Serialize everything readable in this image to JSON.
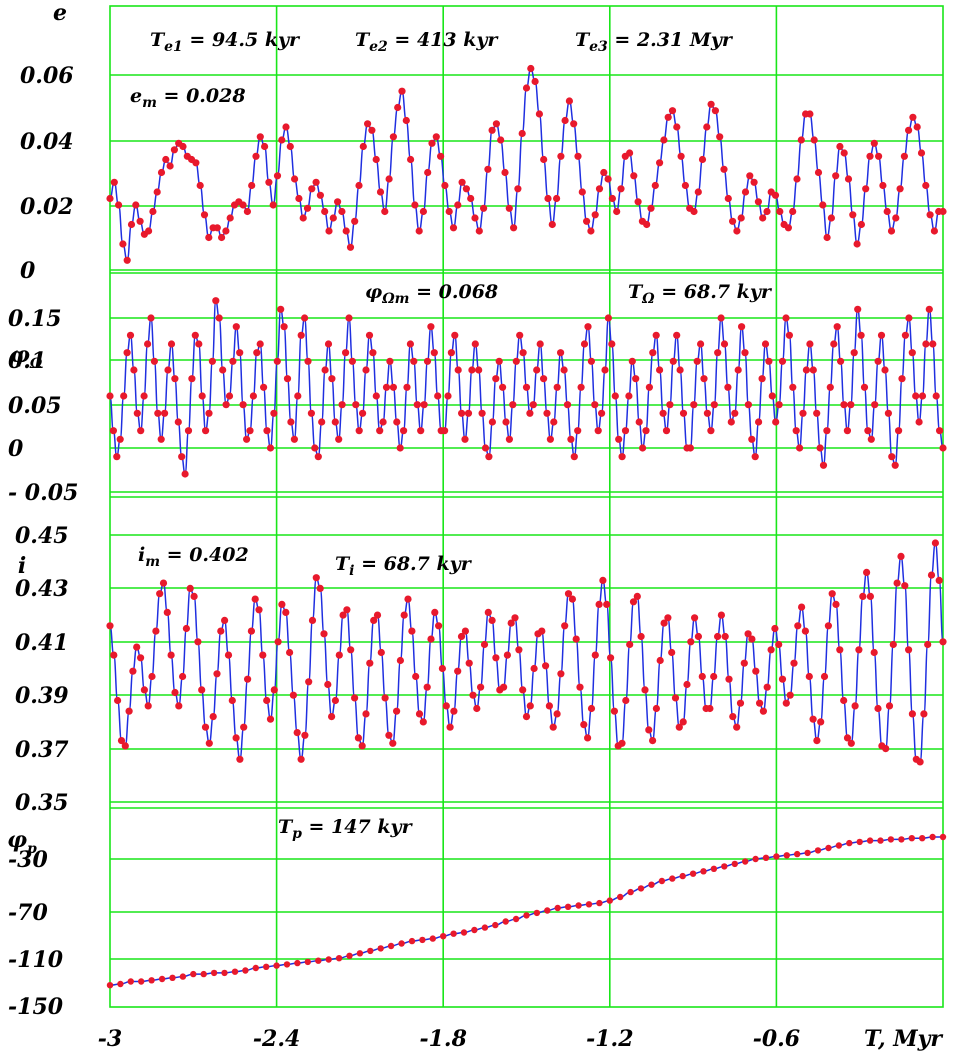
{
  "chart_data": [
    {
      "type": "line",
      "x_range": [
        -3.0,
        0.0
      ],
      "ylim": [
        0.0,
        0.07
      ],
      "ylabel": "e",
      "y_ticks": [
        "0",
        "0.02",
        "0.04",
        "0.06"
      ],
      "annotations": [
        {
          "main": "T",
          "sub": "e1",
          "rest": " = 94.5 kyr"
        },
        {
          "main": "T",
          "sub": "e2",
          "rest": " = 413  kyr"
        },
        {
          "main": "T",
          "sub": "e3",
          "rest": " = 2.31 Myr"
        },
        {
          "main": "e",
          "sub": "m",
          "rest": " = 0.028"
        }
      ],
      "series": [
        {
          "y": [
            0.022,
            0.027,
            0.02,
            0.008,
            0.003,
            0.014,
            0.02,
            0.015,
            0.011,
            0.012,
            0.018,
            0.024,
            0.03,
            0.034,
            0.032,
            0.037,
            0.039,
            0.038,
            0.035,
            0.034,
            0.033,
            0.026,
            0.017,
            0.01,
            0.013,
            0.013,
            0.01,
            0.012,
            0.016,
            0.02,
            0.021,
            0.02,
            0.018,
            0.026,
            0.035,
            0.041,
            0.038,
            0.027,
            0.02,
            0.029,
            0.04,
            0.044,
            0.038,
            0.028,
            0.022,
            0.016,
            0.019,
            0.025,
            0.027,
            0.023,
            0.018,
            0.012,
            0.016,
            0.021,
            0.018,
            0.012,
            0.007,
            0.015,
            0.026,
            0.038,
            0.045,
            0.043,
            0.034,
            0.024,
            0.018,
            0.028,
            0.041,
            0.05,
            0.055,
            0.046,
            0.034,
            0.02,
            0.012,
            0.018,
            0.03,
            0.039,
            0.041,
            0.035,
            0.026,
            0.018,
            0.013,
            0.02,
            0.027,
            0.025,
            0.022,
            0.016,
            0.012,
            0.019,
            0.031,
            0.043,
            0.045,
            0.04,
            0.03,
            0.019,
            0.013,
            0.025,
            0.042,
            0.056,
            0.062,
            0.058,
            0.048,
            0.034,
            0.022,
            0.014,
            0.022,
            0.035,
            0.046,
            0.052,
            0.045,
            0.035,
            0.024,
            0.015,
            0.012,
            0.017,
            0.025,
            0.03,
            0.028,
            0.022,
            0.018,
            0.025,
            0.035,
            0.036,
            0.029,
            0.021,
            0.015,
            0.014,
            0.019,
            0.026,
            0.033,
            0.04,
            0.047,
            0.049,
            0.044,
            0.035,
            0.026,
            0.019,
            0.018,
            0.024,
            0.034,
            0.044,
            0.051,
            0.049,
            0.041,
            0.031,
            0.022,
            0.015,
            0.012,
            0.016,
            0.024,
            0.029,
            0.027,
            0.021,
            0.016,
            0.018,
            0.024,
            0.023,
            0.018,
            0.014,
            0.013,
            0.018,
            0.028,
            0.04,
            0.048,
            0.048,
            0.04,
            0.03,
            0.02,
            0.01,
            0.016,
            0.029,
            0.038,
            0.036,
            0.028,
            0.017,
            0.008,
            0.014,
            0.025,
            0.035,
            0.039,
            0.035,
            0.026,
            0.018,
            0.012,
            0.016,
            0.025,
            0.035,
            0.043,
            0.047,
            0.044,
            0.036,
            0.026,
            0.017,
            0.012,
            0.018,
            0.018
          ]
        }
      ]
    },
    {
      "type": "line",
      "x_range": [
        -3.0,
        0.0
      ],
      "ylim": [
        -0.05,
        0.2
      ],
      "ylabel": "φΩ",
      "y_ticks": [
        "- 0.05",
        "0",
        "0.05",
        "0.1",
        "0.15"
      ],
      "annotations": [
        {
          "main": "φ",
          "sub": "Ωm",
          "rest": " = 0.068"
        },
        {
          "main": "T",
          "sub": "Ω",
          "rest": " =  68.7 kyr"
        }
      ],
      "series": [
        {
          "y": [
            0.06,
            0.02,
            -0.01,
            0.01,
            0.06,
            0.11,
            0.13,
            0.09,
            0.04,
            0.02,
            0.06,
            0.12,
            0.15,
            0.1,
            0.04,
            0.01,
            0.04,
            0.09,
            0.12,
            0.08,
            0.03,
            -0.01,
            -0.03,
            0.02,
            0.08,
            0.13,
            0.12,
            0.06,
            0.02,
            0.04,
            0.1,
            0.17,
            0.15,
            0.09,
            0.05,
            0.06,
            0.1,
            0.14,
            0.11,
            0.05,
            0.01,
            0.02,
            0.06,
            0.11,
            0.12,
            0.07,
            0.02,
            0.0,
            0.04,
            0.1,
            0.16,
            0.14,
            0.08,
            0.03,
            0.01,
            0.06,
            0.13,
            0.15,
            0.1,
            0.04,
            0.0,
            -0.01,
            0.03,
            0.09,
            0.12,
            0.08,
            0.03,
            0.01,
            0.05,
            0.11,
            0.15,
            0.1,
            0.05,
            0.02,
            0.04,
            0.09,
            0.13,
            0.11,
            0.06,
            0.02,
            0.03,
            0.07,
            0.1,
            0.07,
            0.03,
            0.0,
            0.02,
            0.07,
            0.12,
            0.1,
            0.05,
            0.02,
            0.05,
            0.1,
            0.14,
            0.11,
            0.06,
            0.02,
            0.02,
            0.06,
            0.11,
            0.13,
            0.09,
            0.04,
            0.01,
            0.04,
            0.09,
            0.12,
            0.09,
            0.04,
            0.0,
            -0.01,
            0.03,
            0.08,
            0.1,
            0.07,
            0.03,
            0.01,
            0.05,
            0.1,
            0.13,
            0.11,
            0.07,
            0.04,
            0.05,
            0.09,
            0.12,
            0.08,
            0.04,
            0.01,
            0.03,
            0.07,
            0.11,
            0.09,
            0.05,
            0.01,
            -0.01,
            0.02,
            0.07,
            0.12,
            0.14,
            0.1,
            0.05,
            0.02,
            0.04,
            0.09,
            0.15,
            0.12,
            0.06,
            0.01,
            -0.01,
            0.02,
            0.06,
            0.1,
            0.08,
            0.03,
            0.0,
            0.02,
            0.07,
            0.11,
            0.13,
            0.09,
            0.04,
            0.02,
            0.05,
            0.1,
            0.13,
            0.09,
            0.04,
            0.0,
            0.0,
            0.05,
            0.1,
            0.12,
            0.08,
            0.04,
            0.02,
            0.05,
            0.11,
            0.15,
            0.12,
            0.07,
            0.03,
            0.04,
            0.09,
            0.14,
            0.11,
            0.05,
            0.01,
            -0.01,
            0.03,
            0.08,
            0.12,
            0.1,
            0.06,
            0.03,
            0.05,
            0.1,
            0.15,
            0.13,
            0.07,
            0.02,
            0.0,
            0.04,
            0.09,
            0.12,
            0.09,
            0.04,
            0.0,
            -0.02,
            0.02,
            0.07,
            0.12,
            0.14,
            0.1,
            0.05,
            0.02,
            0.05,
            0.11,
            0.16,
            0.13,
            0.07,
            0.02,
            0.01,
            0.05,
            0.1,
            0.13,
            0.09,
            0.04,
            -0.01,
            -0.02,
            0.02,
            0.08,
            0.13,
            0.15,
            0.11,
            0.06,
            0.03,
            0.06,
            0.12,
            0.16,
            0.12,
            0.06,
            0.02,
            0.0
          ]
        }
      ]
    },
    {
      "type": "line",
      "x_range": [
        -3.0,
        0.0
      ],
      "ylim": [
        0.35,
        0.45
      ],
      "ylabel": "i",
      "y_ticks": [
        "0.35",
        "0.37",
        "0.39",
        "0.41",
        "0.43",
        "0.45"
      ],
      "annotations": [
        {
          "main": "i",
          "sub": "m",
          "rest": " = 0.402"
        },
        {
          "main": "T",
          "sub": "i",
          "rest": "  =  68.7 kyr"
        }
      ],
      "series": [
        {
          "y": [
            0.416,
            0.405,
            0.388,
            0.373,
            0.371,
            0.384,
            0.399,
            0.408,
            0.404,
            0.392,
            0.386,
            0.397,
            0.414,
            0.428,
            0.432,
            0.421,
            0.405,
            0.391,
            0.386,
            0.397,
            0.415,
            0.43,
            0.427,
            0.41,
            0.392,
            0.378,
            0.372,
            0.382,
            0.398,
            0.414,
            0.418,
            0.405,
            0.388,
            0.374,
            0.366,
            0.378,
            0.396,
            0.414,
            0.426,
            0.422,
            0.405,
            0.388,
            0.381,
            0.392,
            0.41,
            0.424,
            0.421,
            0.406,
            0.39,
            0.376,
            0.366,
            0.375,
            0.395,
            0.418,
            0.434,
            0.43,
            0.413,
            0.394,
            0.382,
            0.388,
            0.405,
            0.42,
            0.422,
            0.407,
            0.389,
            0.374,
            0.371,
            0.383,
            0.402,
            0.418,
            0.42,
            0.406,
            0.389,
            0.375,
            0.372,
            0.384,
            0.403,
            0.42,
            0.426,
            0.414,
            0.397,
            0.383,
            0.38,
            0.393,
            0.411,
            0.421,
            0.416,
            0.4,
            0.386,
            0.378,
            0.384,
            0.399,
            0.412,
            0.414,
            0.402,
            0.39,
            0.385,
            0.393,
            0.409,
            0.421,
            0.418,
            0.404,
            0.392,
            0.393,
            0.405,
            0.417,
            0.419,
            0.407,
            0.392,
            0.382,
            0.386,
            0.4,
            0.413,
            0.414,
            0.401,
            0.386,
            0.378,
            0.383,
            0.398,
            0.416,
            0.428,
            0.426,
            0.411,
            0.393,
            0.379,
            0.374,
            0.385,
            0.405,
            0.424,
            0.433,
            0.424,
            0.404,
            0.384,
            0.371,
            0.372,
            0.388,
            0.409,
            0.425,
            0.427,
            0.412,
            0.392,
            0.377,
            0.373,
            0.385,
            0.403,
            0.417,
            0.419,
            0.406,
            0.389,
            0.378,
            0.38,
            0.394,
            0.41,
            0.419,
            0.412,
            0.397,
            0.385,
            0.385,
            0.397,
            0.412,
            0.42,
            0.412,
            0.396,
            0.382,
            0.378,
            0.387,
            0.402,
            0.413,
            0.411,
            0.399,
            0.387,
            0.384,
            0.393,
            0.407,
            0.415,
            0.409,
            0.396,
            0.387,
            0.39,
            0.402,
            0.416,
            0.423,
            0.414,
            0.397,
            0.381,
            0.373,
            0.38,
            0.397,
            0.416,
            0.428,
            0.424,
            0.407,
            0.388,
            0.374,
            0.372,
            0.386,
            0.407,
            0.427,
            0.436,
            0.427,
            0.406,
            0.385,
            0.371,
            0.37,
            0.386,
            0.409,
            0.432,
            0.442,
            0.431,
            0.407,
            0.383,
            0.366,
            0.365,
            0.383,
            0.409,
            0.435,
            0.447,
            0.433,
            0.41
          ]
        }
      ]
    },
    {
      "type": "line",
      "x_range": [
        -3.0,
        0.0
      ],
      "ylim": [
        -150,
        -10
      ],
      "ylabel": "φp",
      "y_ticks": [
        "-150",
        "-110",
        "-70",
        "-30"
      ],
      "annotations": [
        {
          "main": "T",
          "sub": "p",
          "rest": " = 147 kyr"
        }
      ],
      "series": [
        {
          "y": [
            -133,
            -132,
            -130,
            -130,
            -129,
            -128,
            -127,
            -126,
            -124,
            -124,
            -123,
            -123,
            -122,
            -121,
            -119,
            -118,
            -117,
            -116,
            -115,
            -114,
            -113,
            -112,
            -111,
            -109,
            -107,
            -105,
            -103,
            -101,
            -99,
            -97,
            -96,
            -95,
            -93,
            -91,
            -90,
            -88,
            -86,
            -84,
            -81,
            -79,
            -76,
            -74,
            -72,
            -70,
            -69,
            -68,
            -67,
            -66,
            -64,
            -61,
            -57,
            -54,
            -51,
            -48,
            -46,
            -44,
            -42,
            -40,
            -38,
            -36,
            -34,
            -32,
            -30,
            -29,
            -28,
            -27,
            -26,
            -25,
            -23,
            -21,
            -19,
            -17,
            -16,
            -15,
            -15,
            -14,
            -14,
            -13,
            -13,
            -12,
            -12
          ]
        }
      ]
    }
  ],
  "x_axis": {
    "ticks": [
      {
        "v": -3.0,
        "label": "-3"
      },
      {
        "v": -2.4,
        "label": "-2.4"
      },
      {
        "v": -1.8,
        "label": "-1.8"
      },
      {
        "v": -1.2,
        "label": "-1.2"
      },
      {
        "v": -0.6,
        "label": "-0.6"
      }
    ],
    "label": "T, Myr"
  },
  "colors": {
    "grid": "#19e619",
    "curve": "#1f2fe0",
    "marker": "#e8192c"
  }
}
